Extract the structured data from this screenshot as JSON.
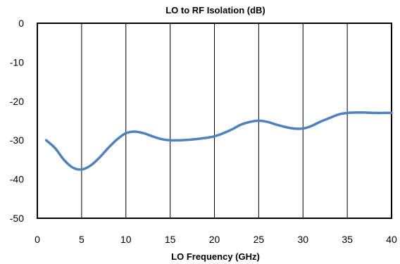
{
  "chart_data": {
    "type": "line",
    "title": "LO to RF Isolation (dB)",
    "xlabel": "LO Frequency (GHz)",
    "ylabel": "",
    "xlim": [
      0,
      40
    ],
    "ylim": [
      -50,
      0
    ],
    "x_ticks": [
      "0",
      "5",
      "10",
      "15",
      "20",
      "25",
      "30",
      "35",
      "40"
    ],
    "y_ticks": [
      "0",
      "-10",
      "-20",
      "-30",
      "-40",
      "-50"
    ],
    "grid": "vertical",
    "legend": "none",
    "series": [
      {
        "color": "#4f81bd",
        "x": [
          1,
          2,
          3,
          4,
          5,
          6,
          7,
          8,
          9,
          10,
          11,
          12,
          13,
          14,
          15,
          16,
          17,
          18,
          19,
          20,
          21,
          22,
          23,
          24,
          25,
          26,
          27,
          28,
          29,
          30,
          31,
          32,
          33,
          34,
          35,
          36,
          37,
          38,
          39,
          40
        ],
        "y": [
          -30,
          -32,
          -35,
          -37,
          -37.5,
          -36.5,
          -34.5,
          -32,
          -29.8,
          -28.2,
          -27.8,
          -28.2,
          -29,
          -29.7,
          -30,
          -30,
          -29.9,
          -29.7,
          -29.4,
          -29,
          -28.2,
          -27.2,
          -26,
          -25.3,
          -25,
          -25.3,
          -26,
          -26.6,
          -27,
          -27,
          -26.3,
          -25.2,
          -24.3,
          -23.4,
          -23,
          -22.9,
          -22.9,
          -23,
          -23,
          -23
        ]
      }
    ]
  }
}
